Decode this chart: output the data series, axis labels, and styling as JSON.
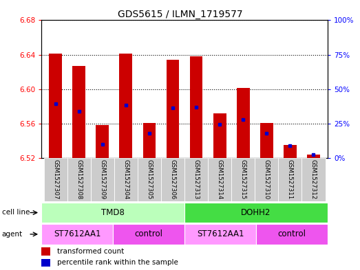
{
  "title": "GDS5615 / ILMN_1719577",
  "samples": [
    "GSM1527307",
    "GSM1527308",
    "GSM1527309",
    "GSM1527304",
    "GSM1527305",
    "GSM1527306",
    "GSM1527313",
    "GSM1527314",
    "GSM1527315",
    "GSM1527310",
    "GSM1527311",
    "GSM1527312"
  ],
  "bar_base": 6.52,
  "bar_tops": [
    6.641,
    6.627,
    6.558,
    6.641,
    6.561,
    6.634,
    6.638,
    6.572,
    6.601,
    6.561,
    6.535,
    6.524
  ],
  "blue_vals": [
    6.583,
    6.574,
    6.536,
    6.581,
    6.549,
    6.578,
    6.579,
    6.559,
    6.565,
    6.549,
    6.534,
    6.524
  ],
  "ylim_left": [
    6.52,
    6.68
  ],
  "ylim_right": [
    0,
    100
  ],
  "yticks_left": [
    6.52,
    6.56,
    6.6,
    6.64,
    6.68
  ],
  "yticks_right": [
    0,
    25,
    50,
    75,
    100
  ],
  "ytick_labels_right": [
    "0%",
    "25%",
    "50%",
    "75%",
    "100%"
  ],
  "bar_color": "#cc0000",
  "blue_color": "#0000cc",
  "bg_color": "#ffffff",
  "label_bg_color": "#cccccc",
  "cell_line_groups": [
    {
      "label": "TMD8",
      "span": [
        0,
        6
      ],
      "color": "#bbffbb"
    },
    {
      "label": "DOHH2",
      "span": [
        6,
        12
      ],
      "color": "#44dd44"
    }
  ],
  "agent_groups": [
    {
      "label": "ST7612AA1",
      "span": [
        0,
        3
      ],
      "color": "#ff99ff"
    },
    {
      "label": "control",
      "span": [
        3,
        6
      ],
      "color": "#ee55ee"
    },
    {
      "label": "ST7612AA1",
      "span": [
        6,
        9
      ],
      "color": "#ff99ff"
    },
    {
      "label": "control",
      "span": [
        9,
        12
      ],
      "color": "#ee55ee"
    }
  ]
}
